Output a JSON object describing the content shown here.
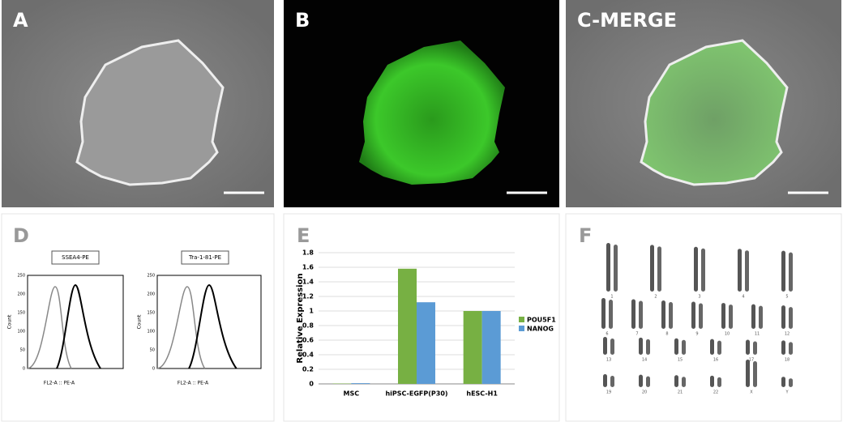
{
  "panels": {
    "A": {
      "label": "A"
    },
    "B": {
      "label": "B"
    },
    "C": {
      "label": "C-MERGE"
    },
    "D": {
      "label": "D",
      "plots": [
        {
          "title": "SSEA4-PE",
          "y_label": "Count",
          "x_label": "FL2-A :: PE-A",
          "yticks": [
            "0",
            "50",
            "100",
            "150",
            "200",
            "250"
          ]
        },
        {
          "title": "Tra-1-81-PE",
          "y_label": "Count",
          "x_label": "FL2-A :: PE-A",
          "yticks": [
            "0",
            "50",
            "100",
            "150",
            "200",
            "250"
          ]
        }
      ]
    },
    "E": {
      "label": "E"
    },
    "F": {
      "label": "F",
      "chromosomes": [
        "1",
        "2",
        "3",
        "4",
        "5",
        "6",
        "7",
        "8",
        "9",
        "10",
        "11",
        "12",
        "13",
        "14",
        "15",
        "16",
        "17",
        "18",
        "19",
        "20",
        "21",
        "22",
        "X",
        "Y"
      ]
    }
  },
  "chart_data": {
    "type": "bar",
    "y_label": "Relative Expression",
    "categories": [
      "MSC",
      "hiPSC-EGFP(P30)",
      "hESC-H1"
    ],
    "series": [
      {
        "name": "POU5F1",
        "color": "#77b043",
        "values": [
          0.005,
          1.58,
          1.0
        ]
      },
      {
        "name": "NANOG",
        "color": "#5b9bd5",
        "values": [
          0.01,
          1.12,
          1.0
        ]
      }
    ],
    "ylim": [
      0,
      1.8
    ],
    "yticks": [
      0,
      0.2,
      0.4,
      0.6,
      0.8,
      1,
      1.2,
      1.4,
      1.6,
      1.8
    ],
    "grid": true,
    "legend": "right"
  }
}
